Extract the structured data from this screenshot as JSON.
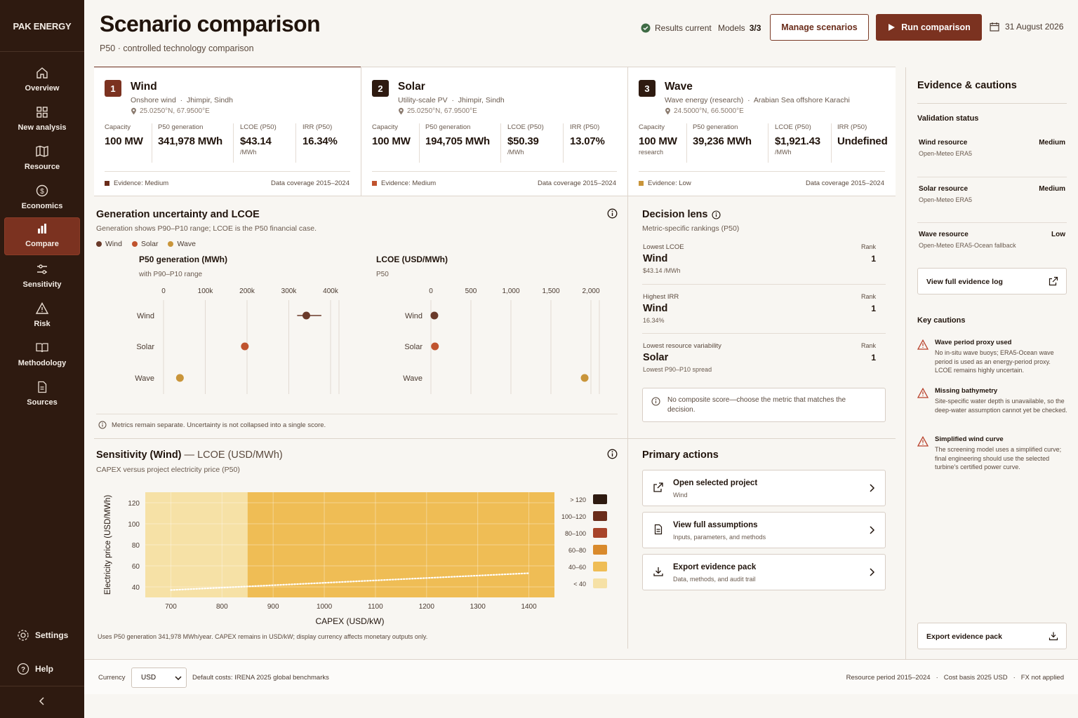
{
  "sidebar": {
    "brand": "PAK ENERGY",
    "items": [
      {
        "label": "Overview",
        "icon": "home-icon"
      },
      {
        "label": "New analysis",
        "icon": "grid-icon"
      },
      {
        "label": "Resource",
        "icon": "map-icon"
      },
      {
        "label": "Economics",
        "icon": "dollar-icon"
      },
      {
        "label": "Compare",
        "icon": "bar-chart-icon",
        "active": true
      },
      {
        "label": "Sensitivity",
        "icon": "sliders-icon"
      },
      {
        "label": "Risk",
        "icon": "warning-icon"
      },
      {
        "label": "Methodology",
        "icon": "book-icon"
      },
      {
        "label": "Sources",
        "icon": "document-icon"
      }
    ],
    "settings_label": "Settings",
    "help_label": "Help"
  },
  "header": {
    "title": "Scenario comparison",
    "subtitle": "P50 · controlled technology comparison",
    "status": "Results current",
    "models_label": "Models",
    "models_value": "3/3",
    "manage_button": "Manage scenarios",
    "run_button": "Run comparison",
    "date": "31 August 2026"
  },
  "cards": [
    {
      "num": "1",
      "name": "Wind",
      "type": "Onshore wind",
      "location": "Jhimpir, Sindh",
      "coords": "25.0250°N, 67.9500°E",
      "capacity_label": "Capacity",
      "capacity": "100 MW",
      "capacity_note": "",
      "gen_label": "P50 generation",
      "gen": "341,978 MWh",
      "lcoe_label": "LCOE (P50)",
      "lcoe": "$43.14",
      "lcoe_unit": "/MWh",
      "irr_label": "IRR (P50)",
      "irr": "16.34%",
      "evidence": "Evidence: Medium",
      "coverage": "Data coverage  2015–2024",
      "color": "#6a2c1a"
    },
    {
      "num": "2",
      "name": "Solar",
      "type": "Utility-scale PV",
      "location": "Jhimpir, Sindh",
      "coords": "25.0250°N, 67.9500°E",
      "capacity_label": "Capacity",
      "capacity": "100 MW",
      "capacity_note": "",
      "gen_label": "P50 generation",
      "gen": "194,705 MWh",
      "lcoe_label": "LCOE (P50)",
      "lcoe": "$50.39",
      "lcoe_unit": "/MWh",
      "irr_label": "IRR (P50)",
      "irr": "13.07%",
      "evidence": "Evidence: Medium",
      "coverage": "Data coverage  2015–2024",
      "color": "#c0532e"
    },
    {
      "num": "3",
      "name": "Wave",
      "type": "Wave energy (research)",
      "location": "Arabian Sea offshore Karachi",
      "coords": "24.5000°N, 66.5000°E",
      "capacity_label": "Capacity",
      "capacity": "100 MW",
      "capacity_note": "research",
      "gen_label": "P50 generation",
      "gen": "39,236 MWh",
      "lcoe_label": "LCOE (P50)",
      "lcoe": "$1,921.43",
      "lcoe_unit": "/MWh",
      "irr_label": "IRR (P50)",
      "irr": "Undefined",
      "evidence": "Evidence: Low",
      "coverage": "Data coverage  2015–2024",
      "color": "#c9953a"
    }
  ],
  "uncertainty": {
    "title": "Generation uncertainty and LCOE",
    "subtitle": "Generation shows P90–P10 range; LCOE is the P50 financial case.",
    "legend": [
      {
        "name": "Wind",
        "color": "#6a3a2a"
      },
      {
        "name": "Solar",
        "color": "#c0532e"
      },
      {
        "name": "Wave",
        "color": "#c9953a"
      }
    ],
    "footnote": "Metrics remain separate. Uncertainty is not collapsed into a single score."
  },
  "chart_data": [
    {
      "type": "scatter",
      "title": "P50 generation (MWh)",
      "subtitle": "with P90–P10 range",
      "categories": [
        "Wind",
        "Solar",
        "Wave"
      ],
      "values": [
        341978,
        194705,
        39236
      ],
      "ranges": [
        [
          320000,
          378000
        ],
        null,
        null
      ],
      "colors": [
        "#6a3a2a",
        "#c0532e",
        "#c9953a"
      ],
      "xlim": [
        0,
        400000
      ],
      "ticks": [
        0,
        100000,
        200000,
        300000,
        400000
      ],
      "tick_labels": [
        "0",
        "100k",
        "200k",
        "300k",
        "400k"
      ]
    },
    {
      "type": "scatter",
      "title": "LCOE (USD/MWh)",
      "subtitle": "P50",
      "categories": [
        "Wind",
        "Solar",
        "Wave"
      ],
      "values": [
        43.14,
        50.39,
        1921.43
      ],
      "colors": [
        "#6a3a2a",
        "#c0532e",
        "#c9953a"
      ],
      "xlim": [
        0,
        2000
      ],
      "ticks": [
        0,
        500,
        1000,
        1500,
        2000
      ],
      "tick_labels": [
        "0",
        "500",
        "1,000",
        "1,500",
        "2,000"
      ]
    },
    {
      "type": "heatmap",
      "title": "Sensitivity (Wind)",
      "title_suffix": "— LCOE (USD/MWh)",
      "subtitle": "CAPEX versus project electricity price (P50)",
      "xlabel": "CAPEX (USD/kW)",
      "ylabel": "Electricity price (USD/MWh)",
      "xlim": [
        650,
        1450
      ],
      "ylim": [
        30,
        130
      ],
      "x_ticks": [
        700,
        800,
        900,
        1000,
        1100,
        1200,
        1300,
        1400
      ],
      "y_ticks": [
        40,
        60,
        80,
        100,
        120
      ],
      "light_cols_below_x": 850,
      "line": {
        "x": [
          700,
          1400
        ],
        "y": [
          37,
          53
        ]
      },
      "bins": [
        {
          "label": "> 120",
          "color": "#2e1a10"
        },
        {
          "label": "100–120",
          "color": "#6a2c1a"
        },
        {
          "label": "80–100",
          "color": "#a8442a"
        },
        {
          "label": "60–80",
          "color": "#d98a2c"
        },
        {
          "label": "40–60",
          "color": "#efbd55"
        },
        {
          "label": "< 40",
          "color": "#f6e1a6"
        }
      ],
      "footnote": "Uses P50 generation 341,978 MWh/year. CAPEX remains in USD/kW; display currency affects monetary outputs only."
    }
  ],
  "decision": {
    "title": "Decision lens",
    "subtitle": "Metric-specific rankings (P50)",
    "rank_label": "Rank",
    "rows": [
      {
        "metric": "Lowest LCOE",
        "winner": "Wind",
        "detail": "$43.14 /MWh",
        "rank": "1"
      },
      {
        "metric": "Highest IRR",
        "winner": "Wind",
        "detail": "16.34%",
        "rank": "1"
      },
      {
        "metric": "Lowest resource variability",
        "winner": "Solar",
        "detail": "Lowest P90–P10 spread",
        "rank": "1"
      }
    ],
    "note": "No composite score—choose the metric that matches the decision."
  },
  "actions": {
    "title": "Primary actions",
    "items": [
      {
        "title": "Open selected project",
        "sub": "Wind",
        "icon": "external-link-icon"
      },
      {
        "title": "View full assumptions",
        "sub": "Inputs, parameters, and methods",
        "icon": "document-icon"
      },
      {
        "title": "Export evidence pack",
        "sub": "Data, methods, and audit trail",
        "icon": "download-icon"
      }
    ]
  },
  "evidence": {
    "title": "Evidence & cautions",
    "validation_title": "Validation status",
    "rows": [
      {
        "name": "Wind resource",
        "level": "Medium",
        "source": "Open-Meteo ERA5"
      },
      {
        "name": "Solar resource",
        "level": "Medium",
        "source": "Open-Meteo ERA5"
      },
      {
        "name": "Wave resource",
        "level": "Low",
        "source": "Open-Meteo ERA5-Ocean fallback"
      }
    ],
    "log_button": "View full evidence log",
    "cautions_title": "Key cautions",
    "cautions": [
      {
        "title": "Wave period proxy used",
        "desc": "No in-situ wave buoys; ERA5-Ocean wave period is used as an energy-period proxy. LCOE remains highly uncertain."
      },
      {
        "title": "Missing bathymetry",
        "desc": "Site-specific water depth is unavailable, so the deep-water assumption cannot yet be checked."
      },
      {
        "title": "Simplified wind curve",
        "desc": "The screening model uses a simplified curve; final engineering should use the selected turbine's certified power curve."
      }
    ],
    "export_button": "Export evidence pack"
  },
  "footer": {
    "currency_label": "Currency",
    "currency_value": "USD",
    "costs": "Default costs: IRENA 2025 global benchmarks",
    "resource_period": "Resource period 2015–2024",
    "cost_basis": "Cost basis 2025 USD",
    "fx": "FX not applied"
  }
}
